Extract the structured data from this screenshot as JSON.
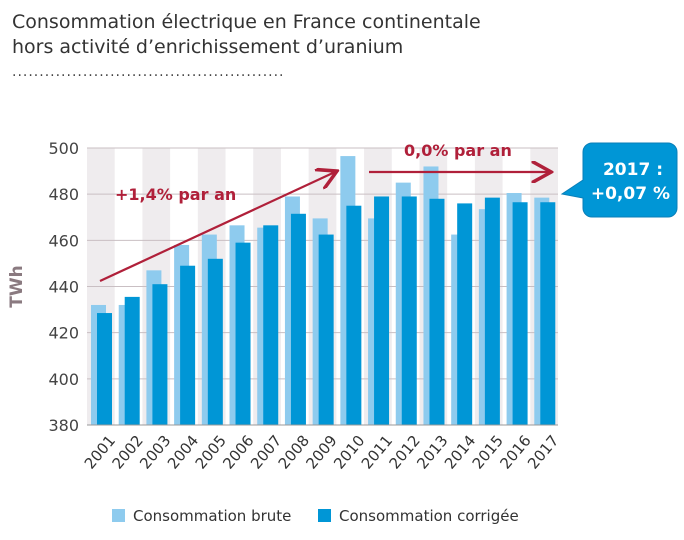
{
  "title_line1": "Consommation électrique en France continentale",
  "title_line2": "hors activité d’enrichissement d’uranium",
  "dots": "..................................................",
  "chart_data": {
    "type": "bar",
    "ylabel": "TWh",
    "ylim": [
      380,
      500
    ],
    "yticks": [
      380,
      400,
      420,
      440,
      460,
      480,
      500
    ],
    "categories": [
      "2001",
      "2002",
      "2003",
      "2004",
      "2005",
      "2006",
      "2007",
      "2008",
      "2009",
      "2010",
      "2011",
      "2012",
      "2013",
      "2014",
      "2015",
      "2016",
      "2017"
    ],
    "series": [
      {
        "name": "Consommation brute",
        "color": "#8ecbee",
        "values": [
          432,
          432,
          447,
          458,
          462.5,
          466.5,
          465.5,
          479,
          469.5,
          496.5,
          469.5,
          485,
          492,
          462.5,
          473.5,
          480.5,
          478.5
        ]
      },
      {
        "name": "Consommation corrigée",
        "color": "#0096d6",
        "values": [
          428.5,
          435.5,
          441,
          449,
          452,
          459,
          466.5,
          471.5,
          462.5,
          475,
          479,
          479,
          478,
          476,
          478.5,
          476.5,
          476.5
        ]
      }
    ],
    "annotations": {
      "trend1": "+1,4% par an",
      "trend2": "0,0% par an",
      "callout_line1": "2017 :",
      "callout_line2": "+0,07 %"
    },
    "trend_color": "#b0203a",
    "grid": true,
    "legend_placement": "bottom"
  }
}
